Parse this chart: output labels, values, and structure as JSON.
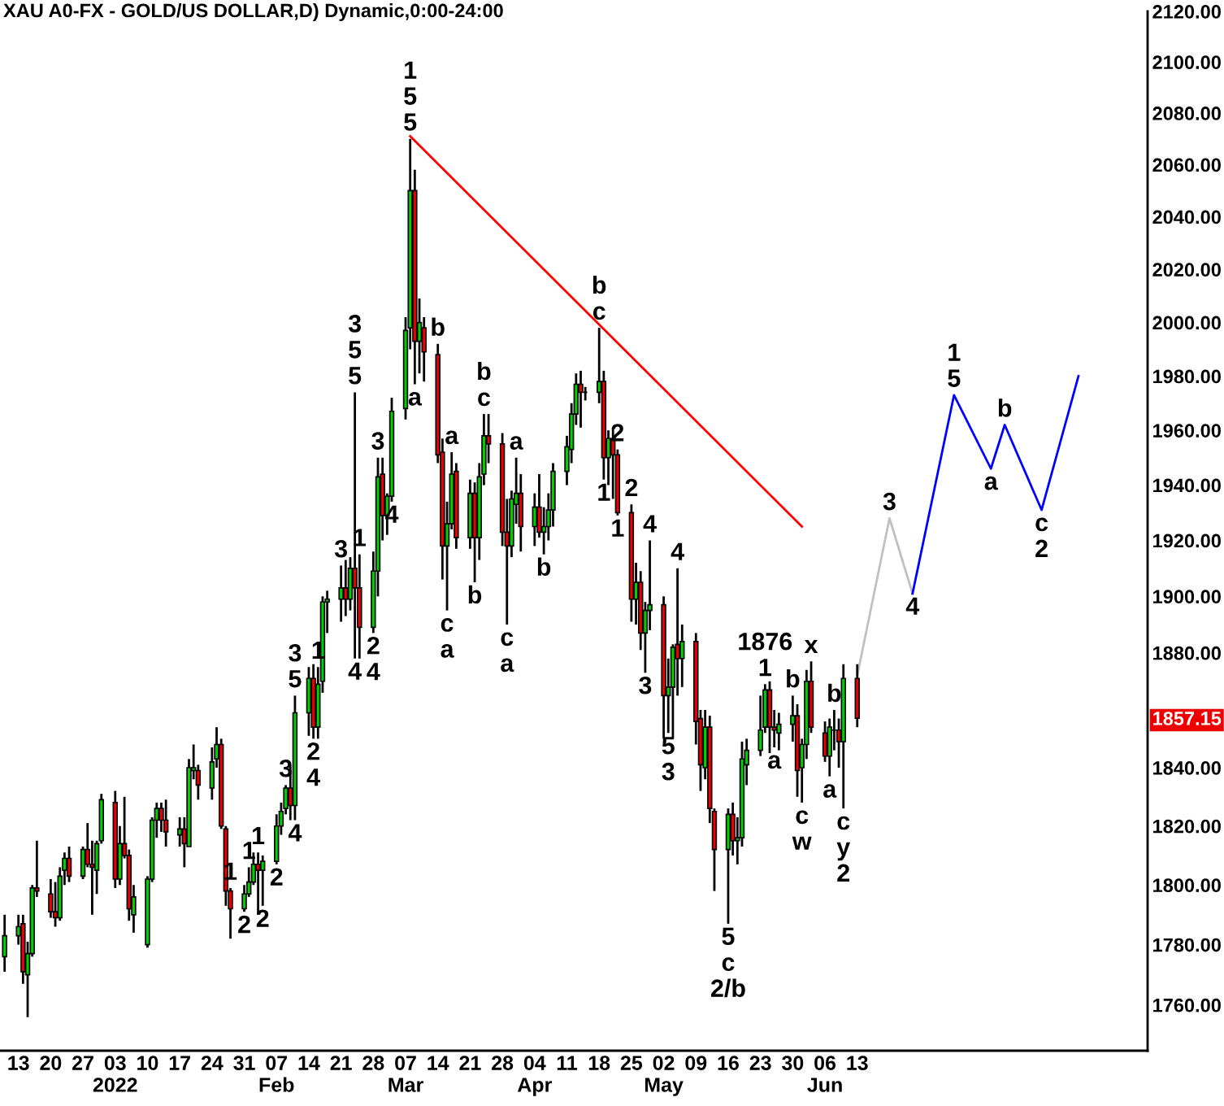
{
  "chart_data": {
    "type": "candlestick",
    "title": "XAU A0-FX - GOLD/US DOLLAR,D) Dynamic,0:00-24:00",
    "log": true,
    "xlim": [
      "2021-12-09",
      "2022-08-15"
    ],
    "xticks": [
      {
        "value": "2021-12-13",
        "label": "13"
      },
      {
        "value": "2021-12-20",
        "label": "20"
      },
      {
        "value": "2021-12-27",
        "label": "27"
      },
      {
        "value": "2022-01-03",
        "label": "03\n2022"
      },
      {
        "value": "2022-01-10",
        "label": "10"
      },
      {
        "value": "2022-01-17",
        "label": "17"
      },
      {
        "value": "2022-01-24",
        "label": "24"
      },
      {
        "value": "2022-01-31",
        "label": "31"
      },
      {
        "value": "2022-02-07",
        "label": "07\nFeb"
      },
      {
        "value": "2022-02-14",
        "label": "14"
      },
      {
        "value": "2022-02-21",
        "label": "21"
      },
      {
        "value": "2022-02-28",
        "label": "28"
      },
      {
        "value": "2022-03-07",
        "label": "07\nMar"
      },
      {
        "value": "2022-03-14",
        "label": "14"
      },
      {
        "value": "2022-03-21",
        "label": "21"
      },
      {
        "value": "2022-03-28",
        "label": "28"
      },
      {
        "value": "2022-04-04",
        "label": "04\nApr"
      },
      {
        "value": "2022-04-11",
        "label": "11"
      },
      {
        "value": "2022-04-18",
        "label": "18"
      },
      {
        "value": "2022-04-25",
        "label": "25"
      },
      {
        "value": "2022-05-02",
        "label": "02\nMay"
      },
      {
        "value": "2022-05-09",
        "label": "09"
      },
      {
        "value": "2022-05-16",
        "label": "16"
      },
      {
        "value": "2022-05-23",
        "label": "23"
      },
      {
        "value": "2022-05-30",
        "label": "30"
      },
      {
        "value": "2022-06-06",
        "label": "06\nJun"
      },
      {
        "value": "2022-06-13",
        "label": "13"
      }
    ],
    "ylim": [
      1745,
      2120
    ],
    "yticks": [
      {
        "value": 1760,
        "label": "1760.00"
      },
      {
        "value": 1780,
        "label": "1780.00"
      },
      {
        "value": 1800,
        "label": "1800.00"
      },
      {
        "value": 1820,
        "label": "1820.00"
      },
      {
        "value": 1840,
        "label": "1840.00"
      },
      {
        "value": 1857.15,
        "label": "1857.15"
      },
      {
        "value": 1880,
        "label": "1880.00"
      },
      {
        "value": 1900,
        "label": "1900.00"
      },
      {
        "value": 1920,
        "label": "1920.00"
      },
      {
        "value": 1940,
        "label": "1940.00"
      },
      {
        "value": 1960,
        "label": "1960.00"
      },
      {
        "value": 1980,
        "label": "1980.00"
      },
      {
        "value": 2000,
        "label": "2000.00"
      },
      {
        "value": 2020,
        "label": "2020.00"
      },
      {
        "value": 2040,
        "label": "2040.00"
      },
      {
        "value": 2060,
        "label": "2060.00"
      },
      {
        "value": 2080,
        "label": "2080.00"
      },
      {
        "value": 2100,
        "label": "2100.00"
      },
      {
        "value": 2120,
        "label": "2120.00"
      }
    ],
    "series": [
      {
        "type": "line",
        "color": "#ff0000",
        "x": [
          "2022-03-08",
          "2022-06-01"
        ],
        "values": [
          2071,
          1925
        ]
      },
      {
        "type": "line",
        "color": "#c0c0c0",
        "x": [
          "2022-06-13",
          "2022-06-20",
          "2022-06-25"
        ],
        "values": [
          1872,
          1928,
          1901
        ]
      },
      {
        "type": "line",
        "color": "#0000ff",
        "x": [
          "2022-06-25",
          "2022-07-04",
          "2022-07-12",
          "2022-07-15",
          "2022-07-23",
          "2022-07-31"
        ],
        "values": [
          1901,
          1973,
          1946,
          1962,
          1931,
          1980
        ]
      },
      {
        "x": [
          "2021-12-10",
          "2021-12-13",
          "2021-12-14",
          "2021-12-15",
          "2021-12-16",
          "2021-12-17",
          "2021-12-20",
          "2021-12-21",
          "2021-12-22",
          "2021-12-23",
          "2021-12-24",
          "2021-12-27",
          "2021-12-28",
          "2021-12-29",
          "2021-12-30",
          "2021-12-31",
          "2022-01-03",
          "2022-01-04",
          "2022-01-05",
          "2022-01-06",
          "2022-01-07",
          "2022-01-10",
          "2022-01-11",
          "2022-01-12",
          "2022-01-13",
          "2022-01-14",
          "2022-01-17",
          "2022-01-18",
          "2022-01-19",
          "2022-01-20",
          "2022-01-21",
          "2022-01-24",
          "2022-01-25",
          "2022-01-26",
          "2022-01-27",
          "2022-01-28",
          "2022-01-31",
          "2022-02-01",
          "2022-02-02",
          "2022-02-03",
          "2022-02-04",
          "2022-02-07",
          "2022-02-08",
          "2022-02-09",
          "2022-02-10",
          "2022-02-11",
          "2022-02-14",
          "2022-02-15",
          "2022-02-16",
          "2022-02-17",
          "2022-02-18",
          "2022-02-21",
          "2022-02-22",
          "2022-02-23",
          "2022-02-24",
          "2022-02-25",
          "2022-02-28",
          "2022-03-01",
          "2022-03-02",
          "2022-03-03",
          "2022-03-04",
          "2022-03-07",
          "2022-03-08",
          "2022-03-09",
          "2022-03-10",
          "2022-03-11",
          "2022-03-14",
          "2022-03-15",
          "2022-03-16",
          "2022-03-17",
          "2022-03-18",
          "2022-03-21",
          "2022-03-22",
          "2022-03-23",
          "2022-03-24",
          "2022-03-25",
          "2022-03-28",
          "2022-03-29",
          "2022-03-30",
          "2022-03-31",
          "2022-04-01",
          "2022-04-04",
          "2022-04-05",
          "2022-04-06",
          "2022-04-07",
          "2022-04-08",
          "2022-04-11",
          "2022-04-12",
          "2022-04-13",
          "2022-04-14",
          "2022-04-15",
          "2022-04-18",
          "2022-04-19",
          "2022-04-20",
          "2022-04-21",
          "2022-04-22",
          "2022-04-25",
          "2022-04-26",
          "2022-04-27",
          "2022-04-28",
          "2022-04-29",
          "2022-05-02",
          "2022-05-03",
          "2022-05-04",
          "2022-05-05",
          "2022-05-06",
          "2022-05-09",
          "2022-05-10",
          "2022-05-11",
          "2022-05-12",
          "2022-05-13",
          "2022-05-16",
          "2022-05-17",
          "2022-05-18",
          "2022-05-19",
          "2022-05-20",
          "2022-05-23",
          "2022-05-24",
          "2022-05-25",
          "2022-05-26",
          "2022-05-27",
          "2022-05-30",
          "2022-05-31",
          "2022-06-01",
          "2022-06-02",
          "2022-06-03",
          "2022-06-06",
          "2022-06-07",
          "2022-06-08",
          "2022-06-09",
          "2022-06-10",
          "2022-06-13"
        ],
        "ohlc": [
          [
            1776,
            1790,
            1771,
            1783
          ],
          [
            1783,
            1790,
            1780,
            1786
          ],
          [
            1787,
            1790,
            1767,
            1771
          ],
          [
            1770,
            1781,
            1756,
            1777
          ],
          [
            1777,
            1800,
            1776,
            1799
          ],
          [
            1799,
            1815,
            1796,
            1798
          ],
          [
            1797,
            1802,
            1789,
            1791
          ],
          [
            1791,
            1801,
            1786,
            1789
          ],
          [
            1789,
            1806,
            1788,
            1803
          ],
          [
            1805,
            1811,
            1800,
            1809
          ],
          [
            1809,
            1813,
            1801,
            1803
          ],
          [
            1803,
            1813,
            1802,
            1812
          ],
          [
            1812,
            1821,
            1806,
            1807
          ],
          [
            1807,
            1815,
            1790,
            1806
          ],
          [
            1805,
            1815,
            1797,
            1814
          ],
          [
            1815,
            1831,
            1814,
            1829
          ],
          [
            1828,
            1832,
            1799,
            1802
          ],
          [
            1802,
            1820,
            1800,
            1814
          ],
          [
            1814,
            1830,
            1809,
            1810
          ],
          [
            1810,
            1812,
            1788,
            1792
          ],
          [
            1790,
            1800,
            1784,
            1796
          ],
          [
            1780,
            1803,
            1779,
            1802
          ],
          [
            1802,
            1823,
            1801,
            1822
          ],
          [
            1822,
            1828,
            1816,
            1826
          ],
          [
            1826,
            1828,
            1818,
            1822
          ],
          [
            1822,
            1829,
            1813,
            1818
          ],
          [
            1817,
            1823,
            1813,
            1819
          ],
          [
            1819,
            1823,
            1806,
            1814
          ],
          [
            1813,
            1843,
            1813,
            1840
          ],
          [
            1839,
            1848,
            1836,
            1840
          ],
          [
            1839,
            1841,
            1829,
            1834
          ],
          [
            1833,
            1847,
            1829,
            1842
          ],
          [
            1843,
            1854,
            1840,
            1848
          ],
          [
            1848,
            1850,
            1819,
            1820
          ],
          [
            1819,
            1820,
            1793,
            1798
          ],
          [
            1798,
            1799,
            1782,
            1792
          ],
          [
            1792,
            1800,
            1791,
            1797
          ],
          [
            1797,
            1806,
            1796,
            1801
          ],
          [
            1801,
            1811,
            1800,
            1807
          ],
          [
            1807,
            1811,
            1790,
            1805
          ],
          [
            1805,
            1810,
            1793,
            1808
          ],
          [
            1808,
            1824,
            1807,
            1820
          ],
          [
            1820,
            1828,
            1817,
            1825
          ],
          [
            1826,
            1834,
            1824,
            1833
          ],
          [
            1833,
            1841,
            1822,
            1827
          ],
          [
            1827,
            1865,
            1822,
            1859
          ],
          [
            1859,
            1875,
            1851,
            1871
          ],
          [
            1871,
            1876,
            1850,
            1854
          ],
          [
            1854,
            1875,
            1850,
            1869
          ],
          [
            1870,
            1900,
            1866,
            1898
          ],
          [
            1898,
            1902,
            1887,
            1899
          ],
          [
            1899,
            1911,
            1891,
            1903
          ],
          [
            1903,
            1913,
            1893,
            1899
          ],
          [
            1899,
            1914,
            1895,
            1910
          ],
          [
            1910,
            1974,
            1878,
            1903
          ],
          [
            1903,
            1915,
            1878,
            1889
          ],
          [
            1889,
            1916,
            1887,
            1909
          ],
          [
            1909,
            1950,
            1900,
            1943
          ],
          [
            1944,
            1950,
            1920,
            1929
          ],
          [
            1929,
            1937,
            1922,
            1936
          ],
          [
            1936,
            1972,
            1934,
            1967
          ],
          [
            1968,
            2002,
            1964,
            1997
          ],
          [
            1998,
            2070,
            1990,
            2050
          ],
          [
            2050,
            2058,
            1977,
            1993
          ],
          [
            1993,
            2009,
            1981,
            2000
          ],
          [
            1998,
            2002,
            1978,
            1989
          ],
          [
            1988,
            1992,
            1948,
            1951
          ],
          [
            1952,
            1957,
            1906,
            1918
          ],
          [
            1918,
            1934,
            1895,
            1926
          ],
          [
            1926,
            1952,
            1924,
            1944
          ],
          [
            1945,
            1948,
            1917,
            1921
          ],
          [
            1921,
            1942,
            1917,
            1937
          ],
          [
            1937,
            1941,
            1905,
            1921
          ],
          [
            1921,
            1948,
            1913,
            1943
          ],
          [
            1944,
            1966,
            1940,
            1958
          ],
          [
            1958,
            1966,
            1948,
            1955
          ],
          [
            1955,
            1959,
            1918,
            1923
          ],
          [
            1923,
            1935,
            1890,
            1918
          ],
          [
            1918,
            1938,
            1914,
            1935
          ],
          [
            1933,
            1950,
            1926,
            1937
          ],
          [
            1937,
            1944,
            1916,
            1925
          ],
          [
            1925,
            1937,
            1918,
            1932
          ],
          [
            1932,
            1944,
            1921,
            1923
          ],
          [
            1923,
            1932,
            1915,
            1925
          ],
          [
            1925,
            1937,
            1920,
            1931
          ],
          [
            1931,
            1948,
            1925,
            1945
          ],
          [
            1945,
            1958,
            1940,
            1954
          ],
          [
            1953,
            1970,
            1948,
            1966
          ],
          [
            1966,
            1981,
            1962,
            1977
          ],
          [
            1977,
            1982,
            1961,
            1974
          ],
          [
            1974,
            1976,
            1971,
            1974
          ],
          [
            1974,
            1998,
            1970,
            1978
          ],
          [
            1978,
            1982,
            1942,
            1950
          ],
          [
            1950,
            1960,
            1940,
            1957
          ],
          [
            1957,
            1961,
            1935,
            1951
          ],
          [
            1951,
            1953,
            1929,
            1930
          ],
          [
            1930,
            1933,
            1891,
            1899
          ],
          [
            1899,
            1912,
            1890,
            1905
          ],
          [
            1905,
            1909,
            1881,
            1887
          ],
          [
            1887,
            1898,
            1873,
            1895
          ],
          [
            1895,
            1920,
            1888,
            1897
          ],
          [
            1897,
            1900,
            1850,
            1865
          ],
          [
            1865,
            1878,
            1852,
            1868
          ],
          [
            1868,
            1883,
            1850,
            1882
          ],
          [
            1883,
            1910,
            1865,
            1878
          ],
          [
            1878,
            1890,
            1868,
            1884
          ],
          [
            1884,
            1887,
            1848,
            1856
          ],
          [
            1857,
            1860,
            1832,
            1841
          ],
          [
            1840,
            1860,
            1836,
            1854
          ],
          [
            1854,
            1858,
            1821,
            1826
          ],
          [
            1825,
            1826,
            1798,
            1812
          ],
          [
            1812,
            1826,
            1787,
            1824
          ],
          [
            1824,
            1828,
            1810,
            1815
          ],
          [
            1815,
            1823,
            1807,
            1816
          ],
          [
            1816,
            1849,
            1813,
            1843
          ],
          [
            1841,
            1850,
            1834,
            1846
          ],
          [
            1846,
            1865,
            1844,
            1853
          ],
          [
            1854,
            1869,
            1852,
            1867
          ],
          [
            1867,
            1870,
            1845,
            1854
          ],
          [
            1854,
            1860,
            1847,
            1853
          ],
          [
            1852,
            1859,
            1846,
            1855
          ],
          [
            1855,
            1865,
            1849,
            1858
          ],
          [
            1858,
            1862,
            1830,
            1839
          ],
          [
            1840,
            1850,
            1828,
            1848
          ],
          [
            1848,
            1874,
            1843,
            1870
          ],
          [
            1870,
            1877,
            1852,
            1854
          ],
          [
            1852,
            1856,
            1842,
            1844
          ],
          [
            1844,
            1857,
            1837,
            1854
          ],
          [
            1853,
            1860,
            1846,
            1853
          ],
          [
            1853,
            1857,
            1840,
            1849
          ],
          [
            1849,
            1876,
            1826,
            1871
          ],
          [
            1871,
            1876,
            1854,
            1857.15
          ]
        ],
        "colors": [
          "#00d000",
          "#00d000",
          "#ee0000",
          "#00d000",
          "#00d000",
          "#ee0000",
          "#ee0000",
          "#ee0000",
          "#00d000",
          "#00d000",
          "#ee0000",
          "#00d000",
          "#ee0000",
          "#ee0000",
          "#00d000",
          "#00d000",
          "#ee0000",
          "#00d000",
          "#ee0000",
          "#ee0000",
          "#00d000",
          "#00d000",
          "#00d000",
          "#00d000",
          "#ee0000",
          "#ee0000",
          "#00d000",
          "#ee0000",
          "#00d000",
          "#00d000",
          "#ee0000",
          "#00d000",
          "#00d000",
          "#ee0000",
          "#ee0000",
          "#ee0000",
          "#00d000",
          "#00d000",
          "#00d000",
          "#ee0000",
          "#00d000",
          "#00d000",
          "#00d000",
          "#00d000",
          "#ee0000",
          "#00d000",
          "#00d000",
          "#ee0000",
          "#00d000",
          "#00d000",
          "#00d000",
          "#00d000",
          "#ee0000",
          "#00d000",
          "#ee0000",
          "#ee0000",
          "#00d000",
          "#00d000",
          "#ee0000",
          "#00d000",
          "#00d000",
          "#00d000",
          "#00d000",
          "#ee0000",
          "#00d000",
          "#ee0000",
          "#ee0000",
          "#ee0000",
          "#00d000",
          "#00d000",
          "#ee0000",
          "#00d000",
          "#ee0000",
          "#00d000",
          "#00d000",
          "#ee0000",
          "#ee0000",
          "#ee0000",
          "#00d000",
          "#00d000",
          "#ee0000",
          "#00d000",
          "#ee0000",
          "#00d000",
          "#00d000",
          "#00d000",
          "#00d000",
          "#00d000",
          "#00d000",
          "#ee0000",
          "#000000",
          "#00d000",
          "#ee0000",
          "#00d000",
          "#ee0000",
          "#ee0000",
          "#ee0000",
          "#00d000",
          "#ee0000",
          "#00d000",
          "#00d000",
          "#ee0000",
          "#00d000",
          "#00d000",
          "#ee0000",
          "#00d000",
          "#ee0000",
          "#ee0000",
          "#00d000",
          "#ee0000",
          "#ee0000",
          "#00d000",
          "#ee0000",
          "#00d000",
          "#00d000",
          "#00d000",
          "#00d000",
          "#00d000",
          "#ee0000",
          "#ee0000",
          "#00d000",
          "#00d000",
          "#ee0000",
          "#00d000",
          "#00d000",
          "#ee0000",
          "#ee0000",
          "#00d000",
          "#000000",
          "#ee0000",
          "#00d000",
          "#ee0000"
        ]
      }
    ],
    "annotations": [
      {
        "text": "5",
        "x": "2022-03-08",
        "y": 2070
      },
      {
        "text": "5",
        "x": "2022-02-24",
        "y": 1974
      },
      {
        "text": "b",
        "x": "2022-03-14",
        "y": 1992
      },
      {
        "text": "a",
        "x": "2022-03-09",
        "y": 1977
      },
      {
        "text": "3",
        "x": "2022-03-01",
        "y": 1950
      },
      {
        "text": "a",
        "x": "2022-03-17",
        "y": 1952
      },
      {
        "text": "1",
        "x": "2022-02-25",
        "y": 1915
      },
      {
        "text": "3",
        "x": "2022-02-21",
        "y": 1911
      },
      {
        "text": "4",
        "x": "2022-03-04",
        "y": 1934
      },
      {
        "text": "c",
        "x": "2022-03-24",
        "y": 1966
      },
      {
        "text": "a",
        "x": "2022-03-31",
        "y": 1950
      },
      {
        "text": "b",
        "x": "2022-04-06",
        "y": 1915
      },
      {
        "text": "b",
        "x": "2022-03-22",
        "y": 1905
      },
      {
        "text": "c",
        "x": "2022-03-16",
        "y": 1895
      },
      {
        "text": "c",
        "x": "2022-03-29",
        "y": 1890
      },
      {
        "text": "5",
        "x": "2022-02-11",
        "y": 1865
      },
      {
        "text": "1",
        "x": "2022-02-16",
        "y": 1875
      },
      {
        "text": "2",
        "x": "2022-02-28",
        "y": 1887
      },
      {
        "text": "4",
        "x": "2022-02-24",
        "y": 1878
      },
      {
        "text": "2",
        "x": "2022-02-15",
        "y": 1850
      },
      {
        "text": "3",
        "x": "2022-02-09",
        "y": 1834
      },
      {
        "text": "4",
        "x": "2022-02-11",
        "y": 1822
      },
      {
        "text": "1",
        "x": "2022-02-01",
        "y": 1806
      },
      {
        "text": "1",
        "x": "2022-02-03",
        "y": 1811
      },
      {
        "text": "1",
        "x": "2022-01-28",
        "y": 1799
      },
      {
        "text": "2",
        "x": "2022-02-07",
        "y": 1807
      },
      {
        "text": "2",
        "x": "2022-02-04",
        "y": 1793
      },
      {
        "text": "2",
        "x": "2022-01-31",
        "y": 1791
      },
      {
        "text": "c",
        "x": "2022-04-18",
        "y": 1998
      },
      {
        "text": "2",
        "x": "2022-04-22",
        "y": 1953
      },
      {
        "text": "1",
        "x": "2022-04-19",
        "y": 1942
      },
      {
        "text": "2",
        "x": "2022-04-25",
        "y": 1933
      },
      {
        "text": "1",
        "x": "2022-04-22",
        "y": 1929
      },
      {
        "text": "4",
        "x": "2022-04-29",
        "y": 1920
      },
      {
        "text": "4",
        "x": "2022-05-05",
        "y": 1910
      },
      {
        "text": "3",
        "x": "2022-04-28",
        "y": 1873
      },
      {
        "text": "5",
        "x": "2022-05-03",
        "y": 1852
      },
      {
        "text": "1",
        "x": "2022-05-24",
        "y": 1869
      },
      {
        "text": "b",
        "x": "2022-05-30",
        "y": 1865
      },
      {
        "text": "a",
        "x": "2022-05-26",
        "y": 1847
      },
      {
        "text": "x",
        "x": "2022-06-03",
        "y": 1877
      },
      {
        "text": "b",
        "x": "2022-06-08",
        "y": 1860
      },
      {
        "text": "c",
        "x": "2022-06-01",
        "y": 1828
      },
      {
        "text": "a",
        "x": "2022-06-07",
        "y": 1837
      },
      {
        "text": "c",
        "x": "2022-06-10",
        "y": 1826
      },
      {
        "text": "5",
        "x": "2022-05-16",
        "y": 1787
      },
      {
        "text": "5",
        "x": "2022-07-04",
        "y": 1973
      },
      {
        "text": "3",
        "x": "2022-06-20",
        "y": 1928
      },
      {
        "text": "4",
        "x": "2022-06-25",
        "y": 1901
      },
      {
        "text": "a",
        "x": "2022-07-12",
        "y": 1946
      },
      {
        "text": "b",
        "x": "2022-07-15",
        "y": 1962
      },
      {
        "text": "c",
        "x": "2022-07-23",
        "y": 1931
      },
      {
        "text": "5",
        "x": "2022-03-08",
        "y": 2070
      },
      {
        "text": "5",
        "x": "2022-02-24",
        "y": 1974
      },
      {
        "text": "b",
        "x": "2022-03-24",
        "y": 1966
      },
      {
        "text": "a",
        "x": "2022-03-16",
        "y": 1895
      },
      {
        "text": "a",
        "x": "2022-03-29",
        "y": 1890
      },
      {
        "text": "3",
        "x": "2022-02-11",
        "y": 1865
      },
      {
        "text": "4",
        "x": "2022-02-28",
        "y": 1887
      },
      {
        "text": "4",
        "x": "2022-02-15",
        "y": 1850
      },
      {
        "text": "b",
        "x": "2022-04-18",
        "y": 1998
      },
      {
        "text": "3",
        "x": "2022-05-03",
        "y": 1852
      },
      {
        "text": "1876",
        "x": "2022-05-24",
        "y": 1869
      },
      {
        "text": "w",
        "x": "2022-06-01",
        "y": 1828
      },
      {
        "text": "y",
        "x": "2022-06-10",
        "y": 1826
      },
      {
        "text": "c",
        "x": "2022-05-16",
        "y": 1787
      },
      {
        "text": "1",
        "x": "2022-07-04",
        "y": 1973
      },
      {
        "text": "2",
        "x": "2022-07-23",
        "y": 1931
      },
      {
        "text": "1",
        "x": "2022-03-08",
        "y": 2070
      },
      {
        "text": "3",
        "x": "2022-02-24",
        "y": 1974
      },
      {
        "text": "2",
        "x": "2022-06-10",
        "y": 1826
      },
      {
        "text": "2/b",
        "x": "2022-05-16",
        "y": 1787
      }
    ]
  }
}
